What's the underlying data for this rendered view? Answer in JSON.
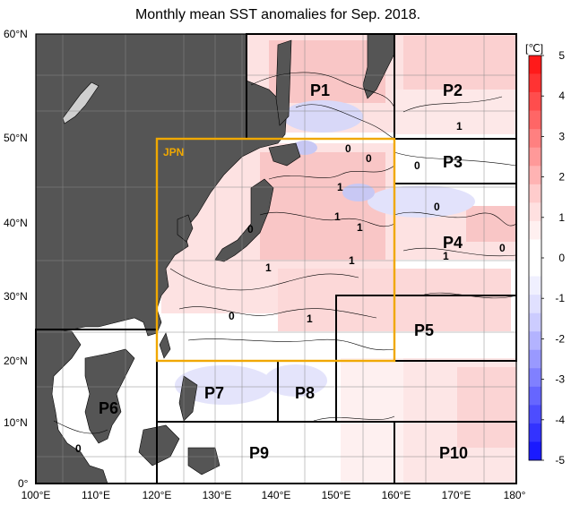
{
  "title": "Monthly mean SST anomalies for Sep. 2018.",
  "map": {
    "lat_ticks": [
      "60°N",
      "50°N",
      "40°N",
      "30°N",
      "20°N",
      "10°N",
      "0°"
    ],
    "lon_ticks": [
      "100°E",
      "110°E",
      "120°E",
      "130°E",
      "140°E",
      "150°E",
      "160°E",
      "170°E",
      "180°"
    ],
    "regions": [
      {
        "id": "jpn",
        "label": "JPN",
        "color": "#f0a800"
      },
      {
        "id": "p1",
        "label": "P1"
      },
      {
        "id": "p2",
        "label": "P2"
      },
      {
        "id": "p3",
        "label": "P3"
      },
      {
        "id": "p4",
        "label": "P4"
      },
      {
        "id": "p5",
        "label": "P5"
      },
      {
        "id": "p6",
        "label": "P6"
      },
      {
        "id": "p7",
        "label": "P7"
      },
      {
        "id": "p8",
        "label": "P8"
      },
      {
        "id": "p9",
        "label": "P9"
      },
      {
        "id": "p10",
        "label": "P10"
      }
    ],
    "contour_labels": [
      "0",
      "0",
      "0",
      "0",
      "0",
      "0",
      "0",
      "0",
      "1",
      "1",
      "1",
      "1",
      "1",
      "1",
      "1",
      "1"
    ]
  },
  "colorbar": {
    "unit": "[℃]",
    "ticks": [
      "5",
      "4",
      "3",
      "2",
      "1",
      "0",
      "-1",
      "-2",
      "-3",
      "-4",
      "-5"
    ],
    "colors": [
      "#ff1a1a",
      "#ff3333",
      "#ff4d4d",
      "#ff6666",
      "#ff8080",
      "#ff9999",
      "#ffb3b3",
      "#ffcccc",
      "#ffe0e0",
      "#fff0f0",
      "#ffffff",
      "#ffffff",
      "#f0f0ff",
      "#e0e0ff",
      "#ccccff",
      "#b3b3ff",
      "#9999ff",
      "#8080ff",
      "#6666ff",
      "#4d4dff",
      "#3333ff",
      "#1a1aff"
    ]
  }
}
